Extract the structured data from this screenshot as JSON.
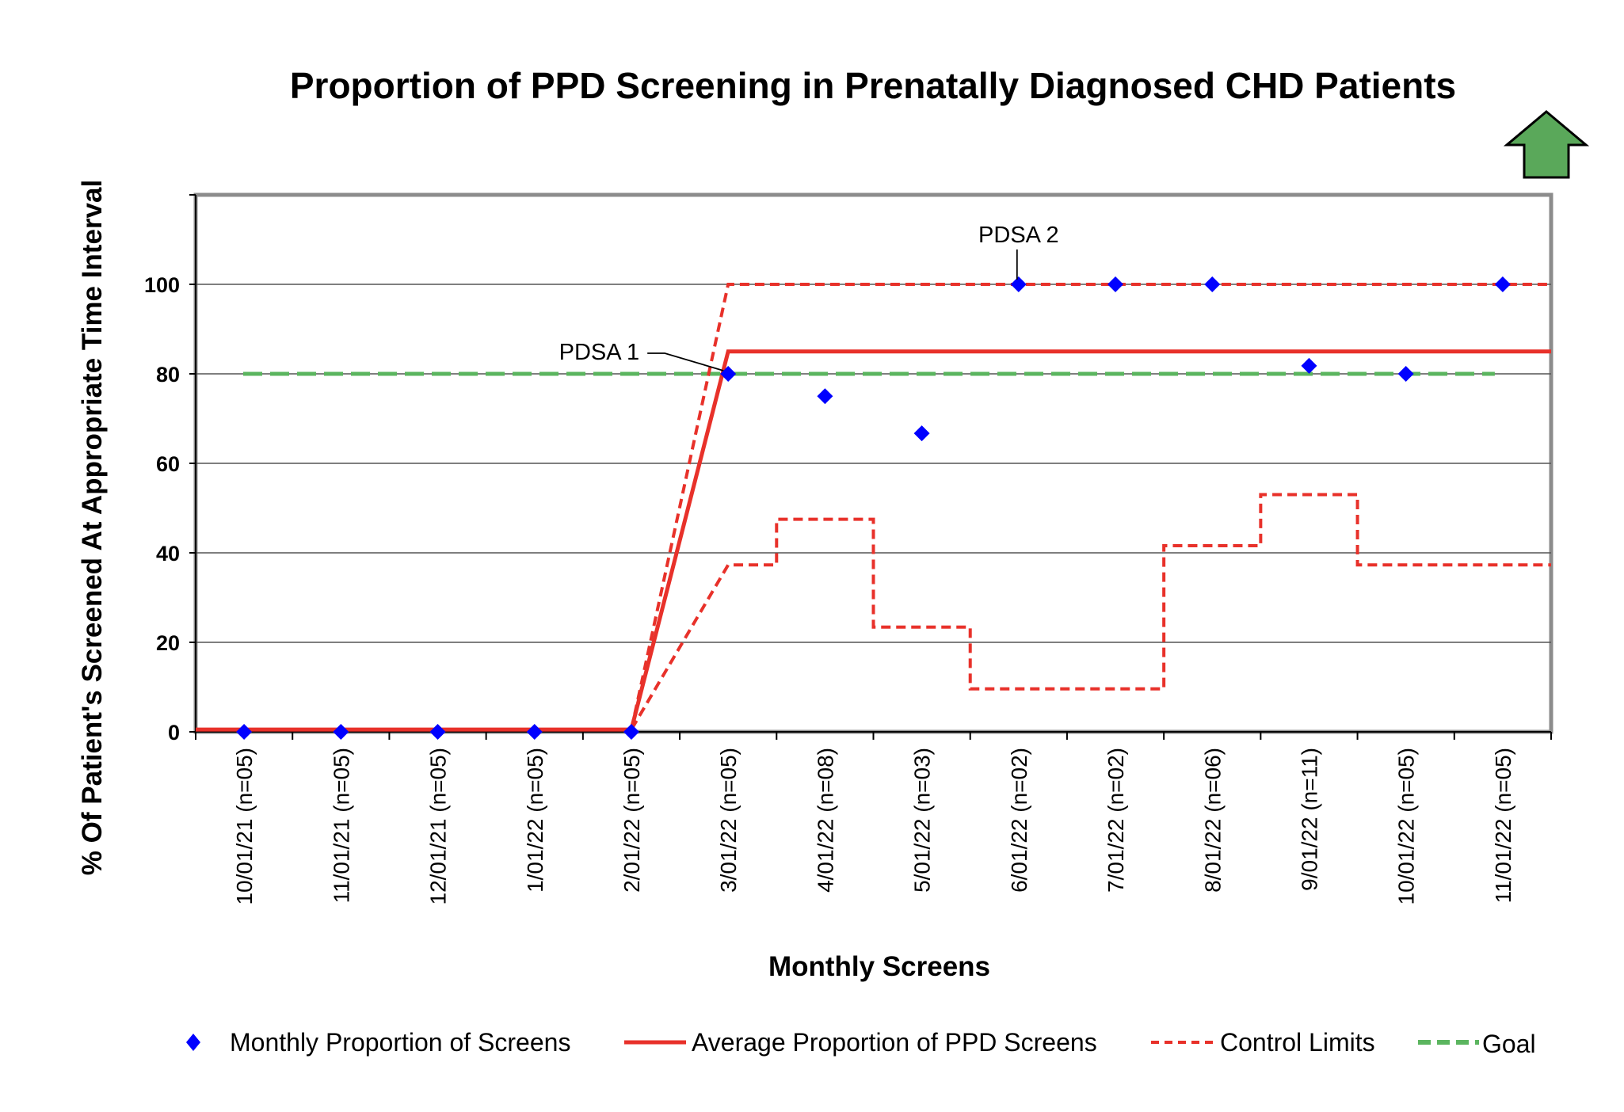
{
  "chart_data": {
    "type": "line",
    "title": "Proportion of PPD Screening in Prenatally Diagnosed CHD Patients",
    "xlabel": "Monthly Screens",
    "ylabel": "% Of Patient's Screened At Appropriate Time Interval",
    "ylim": [
      0,
      120
    ],
    "yticks": [
      0,
      20,
      40,
      60,
      80,
      100
    ],
    "grid": true,
    "legend_position": "bottom",
    "categories": [
      "10/01/21 (n=05)",
      "11/01/21 (n=05)",
      "12/01/21 (n=05)",
      "1/01/22 (n=05)",
      "2/01/22 (n=05)",
      "3/01/22 (n=05)",
      "4/01/22 (n=08)",
      "5/01/22 (n=03)",
      "6/01/22 (n=02)",
      "7/01/22 (n=02)",
      "8/01/22 (n=06)",
      "9/01/22 (n=11)",
      "10/01/22 (n=05)",
      "11/01/22 (n=05)"
    ],
    "series": [
      {
        "name": "Monthly Proportion of Screens",
        "kind": "markers",
        "color": "#0000ff",
        "values": [
          0,
          0,
          0,
          0,
          0,
          80,
          75,
          66.7,
          100,
          100,
          100,
          81.8,
          80,
          100
        ]
      },
      {
        "name": "Average Proportion of PPD Screens",
        "kind": "solid",
        "color": "#e8312a",
        "values": [
          0.5,
          0.5,
          0.5,
          0.5,
          0.5,
          85,
          85,
          85,
          85,
          85,
          85,
          85,
          85,
          85
        ]
      },
      {
        "name": "Control Limits",
        "kind": "dashed",
        "color": "#e8312a",
        "upper": [
          0.5,
          0.5,
          0.5,
          0.5,
          0.5,
          100,
          100,
          100,
          100,
          100,
          100,
          100,
          100,
          100
        ],
        "lower": [
          0.5,
          0.5,
          0.5,
          0.5,
          0.5,
          37.3,
          47.5,
          23.4,
          9.6,
          9.6,
          41.6,
          53,
          37.3,
          37.3
        ]
      },
      {
        "name": "Goal",
        "kind": "goal",
        "color": "#5bb55f",
        "values": [
          80,
          80,
          80,
          80,
          80,
          80,
          80,
          80,
          80,
          80,
          80,
          80,
          80,
          80
        ]
      }
    ],
    "annotations": [
      {
        "text": "PDSA 1",
        "category_index": 5,
        "value": 80
      },
      {
        "text": "PDSA 2",
        "category_index": 8,
        "value": 100
      }
    ],
    "indicator": {
      "icon": "up-arrow-icon",
      "color": "#5aa85a",
      "meaning": "higher is better"
    }
  }
}
